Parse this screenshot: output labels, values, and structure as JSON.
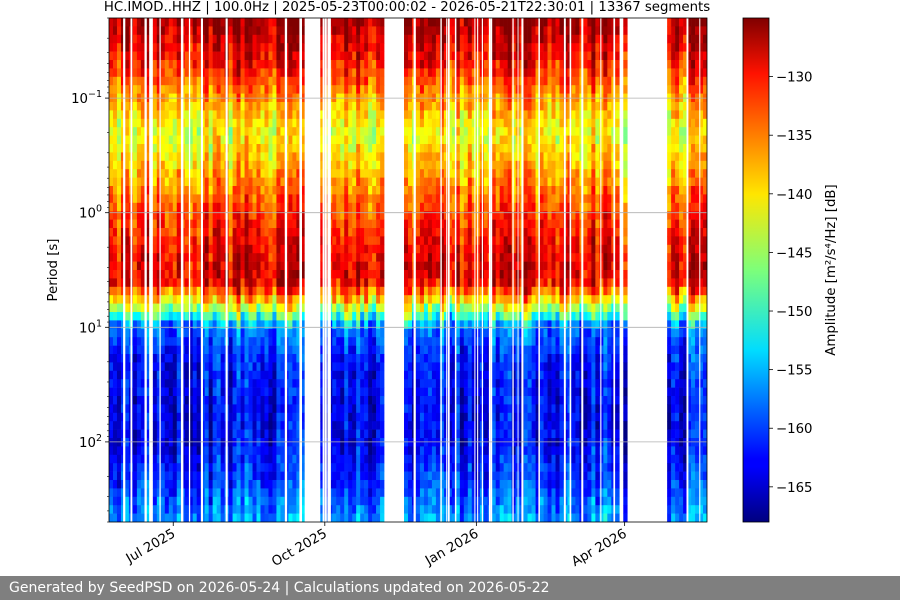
{
  "chart_data": {
    "type": "heatmap",
    "title": "HC.IMOD..HHZ | 100.0Hz | 2025-05-23T00:00:02 - 2026-05-21T22:30:01 | 13367 segments",
    "xlabel": "",
    "ylabel": "Period [s]",
    "x_range": [
      "2025-05-23",
      "2026-05-21"
    ],
    "x_ticks": [
      {
        "date": "2025-07-01",
        "label": "Jul 2025"
      },
      {
        "date": "2025-10-01",
        "label": "Oct 2025"
      },
      {
        "date": "2026-01-01",
        "label": "Jan 2026"
      },
      {
        "date": "2026-04-01",
        "label": "Apr 2026"
      }
    ],
    "y_scale": "log",
    "y_inverted": true,
    "ylim": [
      0.02,
      500
    ],
    "y_ticks": [
      {
        "value": 0.1,
        "base": "10",
        "exp": "−1"
      },
      {
        "value": 1,
        "base": "10",
        "exp": "0"
      },
      {
        "value": 10,
        "base": "10",
        "exp": "1"
      },
      {
        "value": 100,
        "base": "10",
        "exp": "2"
      }
    ],
    "grid": true,
    "colormap": "jet",
    "colorbar": {
      "label": "Amplitude [m²/s⁴/Hz] [dB]",
      "range": [
        -168,
        -125
      ],
      "ticks": [
        -130,
        -135,
        -140,
        -145,
        -150,
        -155,
        -160,
        -165
      ]
    },
    "data_gaps": [
      [
        "2025-06-17",
        "2025-06-18"
      ],
      [
        "2025-09-18",
        "2025-09-28"
      ],
      [
        "2025-11-05",
        "2025-11-19"
      ],
      [
        "2026-03-28",
        "2026-04-01"
      ],
      [
        "2026-04-02",
        "2026-04-27"
      ]
    ],
    "period_profile": [
      {
        "period": 0.02,
        "db": -126
      },
      {
        "period": 0.05,
        "db": -131
      },
      {
        "period": 0.1,
        "db": -137
      },
      {
        "period": 0.2,
        "db": -142
      },
      {
        "period": 0.5,
        "db": -137
      },
      {
        "period": 1,
        "db": -133
      },
      {
        "period": 2,
        "db": -130
      },
      {
        "period": 4,
        "db": -129
      },
      {
        "period": 7,
        "db": -145
      },
      {
        "period": 10,
        "db": -158
      },
      {
        "period": 20,
        "db": -162
      },
      {
        "period": 50,
        "db": -163
      },
      {
        "period": 100,
        "db": -163
      },
      {
        "period": 200,
        "db": -161
      },
      {
        "period": 500,
        "db": -156
      }
    ]
  },
  "footer": {
    "text": "Generated by SeedPSD on 2026-05-24 | Calculations updated on 2026-05-22"
  }
}
